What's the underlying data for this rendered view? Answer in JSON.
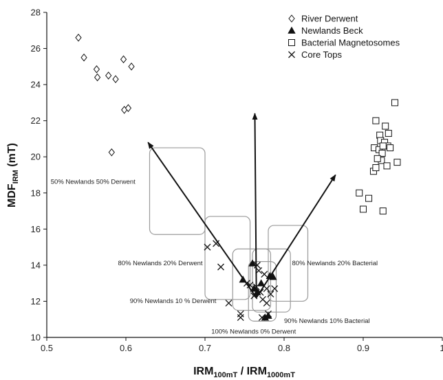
{
  "chart_data": {
    "type": "scatter",
    "xlabel": {
      "main": "IRM",
      "sub1": "100mT",
      "sep": " / IRM",
      "sub2": "1000mT"
    },
    "ylabel": {
      "main": "MDF",
      "sub": "IRM",
      "unit": " (mT)"
    },
    "xlim": [
      0.5,
      1.0
    ],
    "ylim": [
      10,
      28
    ],
    "x_ticks": [
      0.5,
      0.6,
      0.7,
      0.8,
      0.9,
      1.0
    ],
    "x_tick_labels": [
      "0.5",
      "0.6",
      "0.7",
      "0.8",
      "0.9",
      "1"
    ],
    "y_ticks": [
      10,
      12,
      14,
      16,
      18,
      20,
      22,
      24,
      26,
      28
    ],
    "y_tick_labels": [
      "10",
      "12",
      "14",
      "16",
      "18",
      "20",
      "22",
      "24",
      "26",
      "28"
    ],
    "grid": false,
    "legend_position": "top-right",
    "series": [
      {
        "name": "River Derwent",
        "marker": "diamond",
        "points": [
          [
            0.54,
            26.6
          ],
          [
            0.547,
            25.5
          ],
          [
            0.563,
            24.85
          ],
          [
            0.564,
            24.4
          ],
          [
            0.578,
            24.5
          ],
          [
            0.587,
            24.3
          ],
          [
            0.597,
            25.4
          ],
          [
            0.607,
            25.0
          ],
          [
            0.598,
            22.6
          ],
          [
            0.603,
            22.7
          ],
          [
            0.582,
            20.25
          ]
        ]
      },
      {
        "name": "Newlands Beck",
        "marker": "triangle",
        "points": [
          [
            0.748,
            13.2
          ],
          [
            0.76,
            14.1
          ],
          [
            0.762,
            12.7
          ],
          [
            0.766,
            12.5
          ],
          [
            0.771,
            13.0
          ],
          [
            0.782,
            13.4
          ],
          [
            0.786,
            13.35
          ],
          [
            0.776,
            11.1
          ],
          [
            0.78,
            11.2
          ]
        ]
      },
      {
        "name": "Bacterial Magnetosomes",
        "marker": "square",
        "points": [
          [
            0.895,
            18.0
          ],
          [
            0.9,
            17.1
          ],
          [
            0.907,
            17.7
          ],
          [
            0.913,
            19.2
          ],
          [
            0.916,
            19.4
          ],
          [
            0.914,
            20.5
          ],
          [
            0.916,
            22.0
          ],
          [
            0.92,
            20.4
          ],
          [
            0.921,
            21.2
          ],
          [
            0.922,
            20.9
          ],
          [
            0.924,
            20.2
          ],
          [
            0.923,
            19.8
          ],
          [
            0.925,
            17.0
          ],
          [
            0.927,
            20.8
          ],
          [
            0.928,
            21.7
          ],
          [
            0.93,
            19.5
          ],
          [
            0.931,
            20.6
          ],
          [
            0.932,
            21.3
          ],
          [
            0.934,
            20.5
          ],
          [
            0.94,
            23.0
          ],
          [
            0.943,
            19.7
          ],
          [
            0.925,
            20.6
          ],
          [
            0.918,
            19.9
          ]
        ]
      },
      {
        "name": "Core Tops",
        "marker": "x",
        "points": [
          [
            0.703,
            15.0
          ],
          [
            0.714,
            15.2
          ],
          [
            0.72,
            13.9
          ],
          [
            0.73,
            11.9
          ],
          [
            0.745,
            11.3
          ],
          [
            0.745,
            11.1
          ],
          [
            0.753,
            13.0
          ],
          [
            0.757,
            12.9
          ],
          [
            0.762,
            12.3
          ],
          [
            0.765,
            12.8
          ],
          [
            0.766,
            14.0
          ],
          [
            0.768,
            13.7
          ],
          [
            0.77,
            12.5
          ],
          [
            0.773,
            12.1
          ],
          [
            0.775,
            13.5
          ],
          [
            0.778,
            12.7
          ],
          [
            0.778,
            11.9
          ],
          [
            0.78,
            11.3
          ],
          [
            0.772,
            11.1
          ],
          [
            0.783,
            12.4
          ],
          [
            0.788,
            12.7
          ]
        ]
      }
    ],
    "arrows": [
      {
        "from": [
          0.765,
          12.2
        ],
        "to": [
          0.628,
          20.8
        ]
      },
      {
        "from": [
          0.765,
          12.2
        ],
        "to": [
          0.763,
          22.4
        ]
      },
      {
        "from": [
          0.765,
          12.2
        ],
        "to": [
          0.865,
          19.0
        ]
      }
    ],
    "boxes": [
      {
        "x0": 0.63,
        "x1": 0.7,
        "y0": 15.7,
        "y1": 20.5
      },
      {
        "x0": 0.7,
        "x1": 0.757,
        "y0": 12.1,
        "y1": 16.7
      },
      {
        "x0": 0.735,
        "x1": 0.783,
        "y0": 11.5,
        "y1": 14.9
      },
      {
        "x0": 0.755,
        "x1": 0.79,
        "y0": 10.9,
        "y1": 14.2
      },
      {
        "x0": 0.76,
        "x1": 0.808,
        "y0": 11.4,
        "y1": 14.9
      },
      {
        "x0": 0.78,
        "x1": 0.83,
        "y0": 12.0,
        "y1": 16.2
      }
    ],
    "annotations": [
      {
        "text": "50% Newlands 50% Derwent",
        "x": 0.505,
        "y": 18.5
      },
      {
        "text": "80% Newlands 20% Derwent",
        "x": 0.59,
        "y": 14.0
      },
      {
        "text": "90% Newlands 10 % Derwent",
        "x": 0.605,
        "y": 11.9
      },
      {
        "text": "100% Newlands 0% Derwent",
        "x": 0.708,
        "y": 10.2
      },
      {
        "text": "80% Newlands 20% Bacterial",
        "x": 0.81,
        "y": 14.0
      },
      {
        "text": "90% Newlands 10% Bacterial",
        "x": 0.8,
        "y": 10.8
      }
    ]
  }
}
